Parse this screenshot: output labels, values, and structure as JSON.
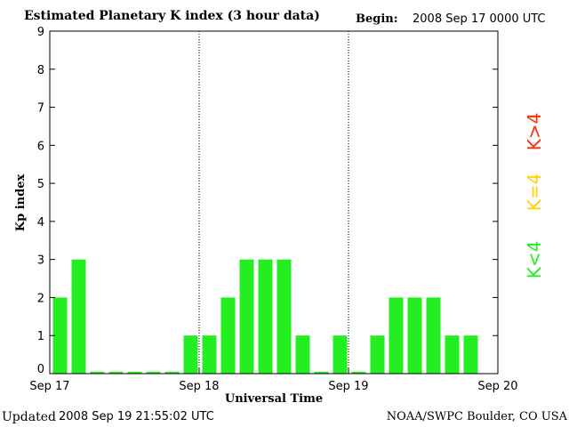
{
  "header": {
    "title": "Estimated Planetary K index (3 hour data)",
    "begin_label": "Begin:",
    "begin_value": "2008 Sep 17 0000 UTC"
  },
  "footer": {
    "updated_label": "Updated",
    "updated_value": "2008 Sep 19 21:55:02 UTC",
    "credit": "NOAA/SWPC Boulder, CO USA"
  },
  "legend": [
    {
      "label": "K>4",
      "color": "#ff2a00"
    },
    {
      "label": "K=4",
      "color": "#ffd200"
    },
    {
      "label": "K<4",
      "color": "#22ee22"
    }
  ],
  "chart_data": {
    "type": "bar",
    "title": "Estimated Planetary K index (3 hour data)",
    "xlabel": "Universal Time",
    "ylabel": "Kp index",
    "ylim": [
      0,
      9
    ],
    "yticks": [
      0,
      1,
      2,
      3,
      4,
      5,
      6,
      7,
      8,
      9
    ],
    "xticks": [
      "Sep 17",
      "Sep 18",
      "Sep 19",
      "Sep 20"
    ],
    "bar_color": "#22ee22",
    "values": [
      2,
      3,
      0,
      0,
      0,
      0,
      0,
      1,
      1,
      2,
      3,
      3,
      3,
      1,
      0,
      1,
      0,
      1,
      2,
      2,
      2,
      1,
      1
    ],
    "zero_marker": 0.05,
    "day_separators": [
      "Sep 18",
      "Sep 19"
    ]
  }
}
